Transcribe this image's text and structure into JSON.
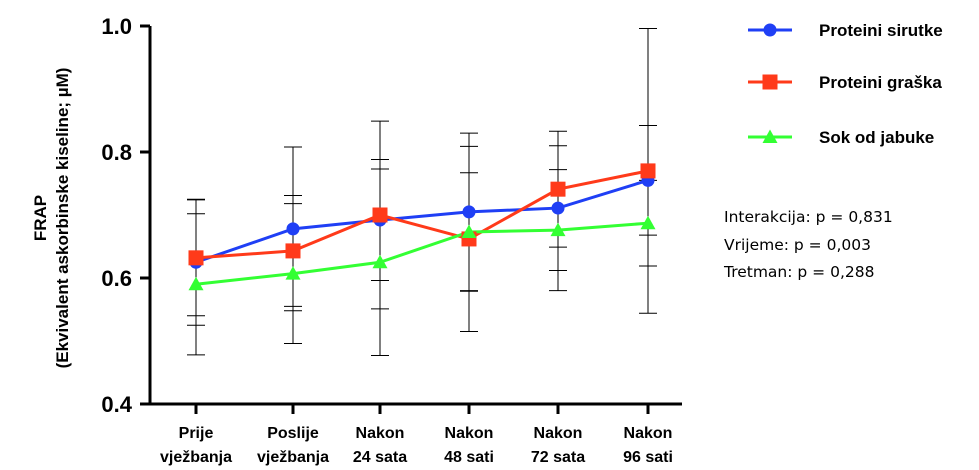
{
  "chart_data": {
    "type": "line",
    "ylabel_line1": "FRAP",
    "ylabel_line2": "(Ekvivalent askorbinske kiseline; µM)",
    "ylim": [
      0.4,
      1.0
    ],
    "yticks": [
      "0.4",
      "0.6",
      "0.8",
      "1.0"
    ],
    "ytick_values": [
      0.4,
      0.6,
      0.8,
      1.0
    ],
    "categories": [
      {
        "line1": "Prije",
        "line2": "vježbanja"
      },
      {
        "line1": "Poslije",
        "line2": "vježbanja"
      },
      {
        "line1": "Nakon",
        "line2": "24 sata"
      },
      {
        "line1": "Nakon",
        "line2": "48 sati"
      },
      {
        "line1": "Nakon",
        "line2": "72 sata"
      },
      {
        "line1": "Nakon",
        "line2": "96 sati"
      }
    ],
    "series": [
      {
        "name": "Proteini sirutke",
        "color": "#1f3ff5",
        "marker": "circle",
        "values": [
          0.625,
          0.678,
          0.692,
          0.705,
          0.711,
          0.755
        ],
        "errors": [
          0.1,
          0.13,
          0.096,
          0.125,
          0.099,
          0.087
        ]
      },
      {
        "name": "Proteini graška",
        "color": "#ff3a1a",
        "marker": "square",
        "values": [
          0.632,
          0.643,
          0.7,
          0.662,
          0.741,
          0.77
        ],
        "errors": [
          0.092,
          0.088,
          0.149,
          0.147,
          0.092,
          0.226
        ]
      },
      {
        "name": "Sok od jabuke",
        "color": "#33ff33",
        "marker": "triangle",
        "values": [
          0.59,
          0.607,
          0.625,
          0.673,
          0.676,
          0.687
        ],
        "errors": [
          0.112,
          0.111,
          0.148,
          0.094,
          0.096,
          0.068
        ]
      }
    ]
  },
  "stats": {
    "interaction": "Interakcija: p = 0,831",
    "time": "Vrijeme: p = 0,003",
    "treatment": "Tretman: p = 0,288"
  }
}
